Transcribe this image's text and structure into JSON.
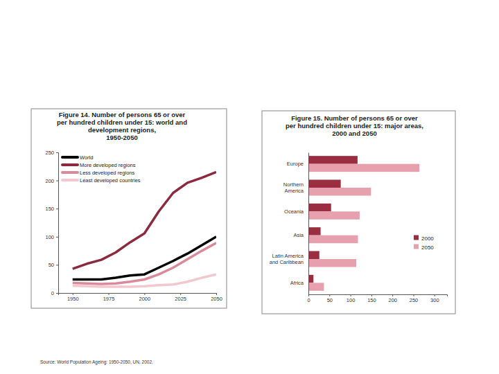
{
  "chart_data": [
    {
      "type": "line",
      "title": "Figure 14.  Number of persons 65 or over\nper hundred children under 15: world and\ndevelopment regions,\n1950-2050",
      "x": [
        1950,
        1960,
        1970,
        1980,
        1990,
        2000,
        2010,
        2020,
        2030,
        2040,
        2050
      ],
      "series": [
        {
          "name": "World",
          "color": "#000000",
          "values": [
            24,
            24,
            24,
            27,
            31,
            33,
            45,
            57,
            70,
            85,
            100
          ]
        },
        {
          "name": "More developed regions",
          "color": "#8b2a3e",
          "values": [
            43,
            52,
            59,
            72,
            90,
            106,
            145,
            178,
            196,
            205,
            215
          ]
        },
        {
          "name": "Less developed regions",
          "color": "#d98a9a",
          "values": [
            18,
            17,
            16,
            17,
            20,
            24,
            33,
            45,
            60,
            75,
            89
          ]
        },
        {
          "name": "Least developed countries",
          "color": "#f2c8cf",
          "values": [
            13,
            12,
            11,
            11,
            11,
            12,
            14,
            15,
            20,
            27,
            33
          ]
        }
      ],
      "xlim": [
        1940,
        2050
      ],
      "xticks": [
        1950,
        1975,
        2000,
        2025,
        2050
      ],
      "ylim": [
        0,
        250
      ],
      "yticks": [
        0,
        50,
        100,
        150,
        200,
        250
      ],
      "legend": "upper left",
      "grid": false
    },
    {
      "type": "bar",
      "orientation": "horizontal",
      "title": "Figure 15.  Number of persons 65 or over\nper hundred children under 15: major areas,\n2000 and 2050",
      "categories": [
        "Europe",
        "Northern\nAmerica",
        "Oceania",
        "Asia",
        "Latin America\nand Caribbean",
        "Africa"
      ],
      "series": [
        {
          "name": "2000",
          "color": "#9b2d40",
          "values": [
            117,
            77,
            54,
            29,
            26,
            12
          ]
        },
        {
          "name": "2050",
          "color": "#e7a0ad",
          "values": [
            264,
            149,
            122,
            118,
            114,
            37
          ]
        }
      ],
      "xlim": [
        0,
        330
      ],
      "xticks": [
        0,
        50,
        100,
        150,
        200,
        250,
        300
      ],
      "legend": "right",
      "grid": false
    }
  ],
  "source": "Source: World Population Ageing: 1950-2050, UN, 2002."
}
